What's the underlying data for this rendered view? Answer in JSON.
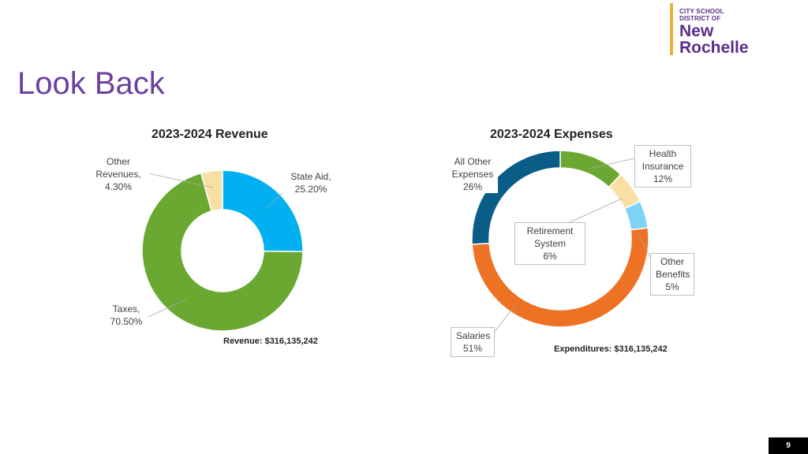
{
  "logo": {
    "line1": "CITY SCHOOL",
    "line2": "DISTRICT OF",
    "line3": "New",
    "line4": "Rochelle"
  },
  "page": {
    "title": "Look Back",
    "number": "9"
  },
  "colors": {
    "accent": "#6b3fa0",
    "logo_bar": "#e9b23b"
  },
  "chart_data": [
    {
      "type": "pie",
      "title": "2023-2024 Revenue",
      "total_label": "Revenue: $316,135,242",
      "slices": [
        {
          "name": "State Aid,",
          "value": 25.2,
          "label": "25.20%",
          "color": "#00b0f0"
        },
        {
          "name": "Taxes,",
          "value": 70.5,
          "label": "70.50%",
          "color": "#6aa832"
        },
        {
          "name": "Other Revenues,",
          "value": 4.3,
          "label": "4.30%",
          "color": "#f8e0a4"
        }
      ]
    },
    {
      "type": "pie",
      "title": "2023-2024 Expenses",
      "total_label": "Expenditures: $316,135,242",
      "slices": [
        {
          "name": "Health Insurance",
          "value": 12,
          "label": "12%",
          "color": "#6aa832"
        },
        {
          "name": "Retirement System",
          "value": 6,
          "label": "6%",
          "color": "#f8e0a4"
        },
        {
          "name": "Other Benefits",
          "value": 5,
          "label": "5%",
          "color": "#7fd3f7"
        },
        {
          "name": "Salaries",
          "value": 51,
          "label": "51%",
          "color": "#ee7224"
        },
        {
          "name": "All Other Expenses",
          "value": 26,
          "label": "26%",
          "color": "#0a5d86"
        }
      ]
    }
  ]
}
